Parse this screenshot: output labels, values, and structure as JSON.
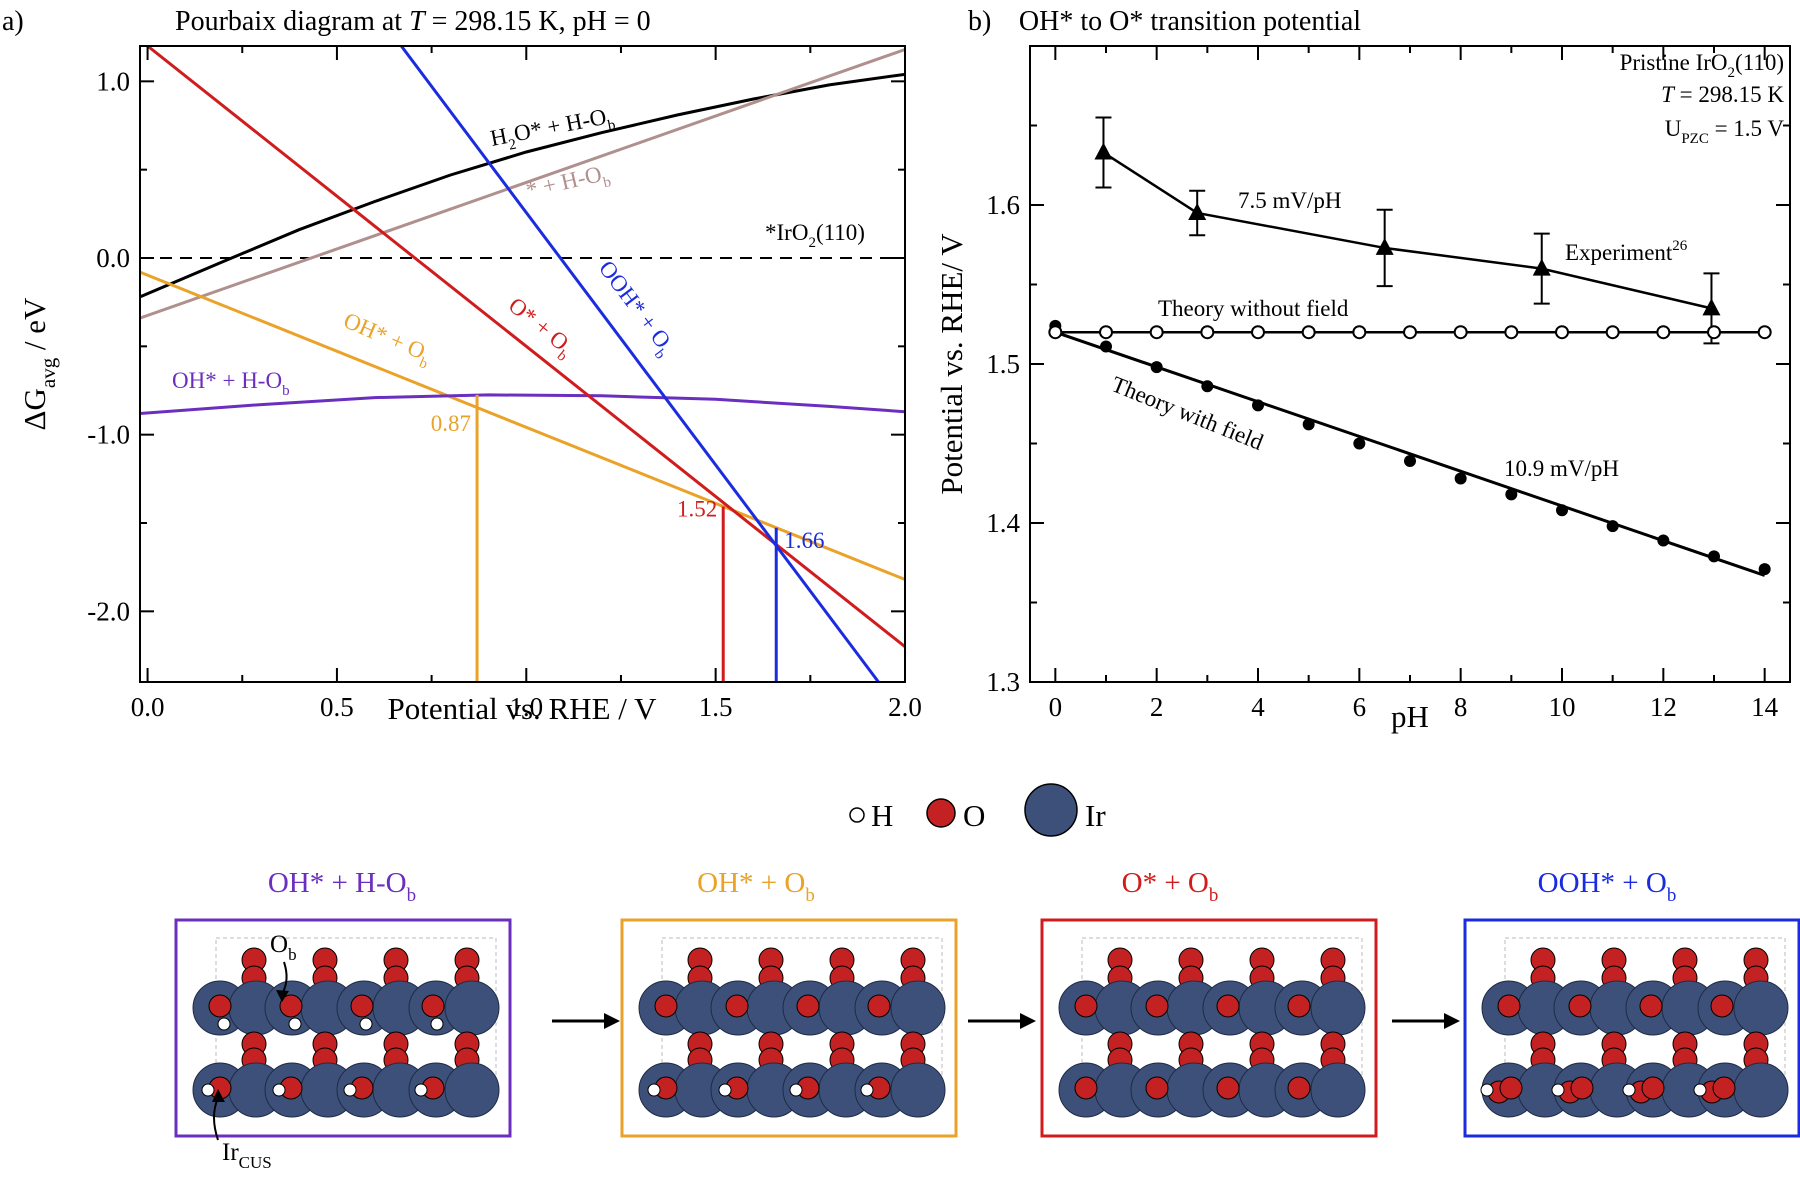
{
  "chart_data": [
    {
      "panel_label": "a)",
      "type": "line",
      "title_parts": [
        "Pourbaix diagram at ",
        "T",
        " = 298.15 K,  pH = 0"
      ],
      "xlabel": "Potential vs. RHE / V",
      "ylabel_parts": [
        "ΔG",
        "avg",
        " / eV"
      ],
      "xlim": [
        -0.02,
        2.0
      ],
      "ylim": [
        -2.4,
        1.2
      ],
      "xticks": [
        0.0,
        0.5,
        1.0,
        1.5,
        2.0
      ],
      "xtick_labels": [
        "0.0",
        "0.5",
        "1.0",
        "1.5",
        "2.0"
      ],
      "yticks": [
        -2.0,
        -1.0,
        0.0,
        1.0
      ],
      "ytick_labels": [
        "-2.0",
        "-1.0",
        "0.0",
        "1.0"
      ],
      "reference_line": {
        "y": 0.0,
        "label_parts": [
          "*IrO",
          "2",
          "(110)"
        ]
      },
      "series": [
        {
          "name_parts": [
            "H",
            "2",
            "O* + H-O",
            "b"
          ],
          "color": "#000000",
          "x": [
            -0.02,
            0.2,
            0.4,
            0.6,
            0.8,
            1.0,
            1.2,
            1.4,
            1.6,
            1.8,
            2.0
          ],
          "y": [
            -0.22,
            -0.02,
            0.16,
            0.32,
            0.47,
            0.6,
            0.71,
            0.81,
            0.9,
            0.98,
            1.04
          ]
        },
        {
          "name_parts": [
            "* + H-O",
            "b"
          ],
          "color": "#b0908e",
          "x": [
            -0.02,
            2.0
          ],
          "y": [
            -0.34,
            1.18
          ]
        },
        {
          "name_parts": [
            "OH* + O",
            "b"
          ],
          "color": "#eaa228",
          "x": [
            -0.02,
            2.0
          ],
          "y": [
            -0.08,
            -1.82
          ]
        },
        {
          "name_parts": [
            "OH* + H-O",
            "b"
          ],
          "color": "#6a2fbf",
          "x": [
            -0.02,
            0.3,
            0.6,
            0.9,
            1.2,
            1.5,
            1.8,
            2.0
          ],
          "y": [
            -0.88,
            -0.83,
            -0.79,
            -0.775,
            -0.78,
            -0.8,
            -0.84,
            -0.87
          ]
        },
        {
          "name_parts": [
            "O* + O",
            "b"
          ],
          "color": "#d01c1c",
          "x": [
            0.0,
            2.0
          ],
          "y": [
            1.2,
            -2.2
          ]
        },
        {
          "name_parts": [
            "OOH* + O",
            "b"
          ],
          "color": "#1a2be0",
          "x": [
            0.67,
            1.93
          ],
          "y": [
            1.2,
            -2.4
          ]
        }
      ],
      "crossings": [
        {
          "x": 0.87,
          "label": "0.87",
          "color": "#eaa228"
        },
        {
          "x": 1.52,
          "label": "1.52",
          "color": "#d01c1c"
        },
        {
          "x": 1.66,
          "label": "1.66",
          "color": "#1a2be0"
        }
      ]
    },
    {
      "panel_label": "b)",
      "type": "scatter",
      "title": "OH* to O* transition potential",
      "xlabel": "pH",
      "ylabel": "Potential  vs. RHE/ V",
      "xlim": [
        -0.5,
        14.5
      ],
      "ylim": [
        1.3,
        1.7
      ],
      "xticks": [
        0,
        2,
        4,
        6,
        8,
        10,
        12,
        14
      ],
      "xtick_labels": [
        "0",
        "2",
        "4",
        "6",
        "8",
        "10",
        "12",
        "14"
      ],
      "yticks": [
        1.3,
        1.4,
        1.5,
        1.6
      ],
      "ytick_labels": [
        "1.3",
        "1.4",
        "1.5",
        "1.6"
      ],
      "legend_lines": [
        [
          "Pristine IrO",
          "2",
          "(110)"
        ],
        [
          "T",
          " = 298.15 K",
          ""
        ],
        [
          "U",
          "PZC",
          " = 1.5 V"
        ]
      ],
      "series": [
        {
          "name_parts": [
            "Experiment",
            "26"
          ],
          "marker": "triangle",
          "color": "#000000",
          "x": [
            0.95,
            2.8,
            6.5,
            9.6,
            12.95
          ],
          "y": [
            1.633,
            1.595,
            1.573,
            1.56,
            1.535
          ],
          "err": [
            0.022,
            0.014,
            0.024,
            0.022,
            0.022
          ],
          "slope_label": "7.5 mV/pH"
        },
        {
          "name_parts": [
            "Theory without field",
            ""
          ],
          "marker": "open-circle",
          "color": "#000000",
          "x": [
            0,
            1,
            2,
            3,
            4,
            5,
            6,
            7,
            8,
            9,
            10,
            11,
            12,
            13,
            14
          ],
          "y": [
            1.52,
            1.52,
            1.52,
            1.52,
            1.52,
            1.52,
            1.52,
            1.52,
            1.52,
            1.52,
            1.52,
            1.52,
            1.52,
            1.52,
            1.52
          ]
        },
        {
          "name_parts": [
            "Theory with field",
            ""
          ],
          "marker": "filled-circle",
          "color": "#000000",
          "x": [
            0,
            1,
            2,
            3,
            4,
            5,
            6,
            7,
            8,
            9,
            10,
            11,
            12,
            13,
            14
          ],
          "y": [
            1.524,
            1.511,
            1.498,
            1.486,
            1.474,
            1.462,
            1.45,
            1.439,
            1.428,
            1.418,
            1.408,
            1.398,
            1.389,
            1.379,
            1.371
          ],
          "fit_line": {
            "x": [
              0,
              14
            ],
            "y": [
              1.52,
              1.367
            ]
          },
          "slope_label": "10.9 mV/pH"
        }
      ]
    }
  ],
  "atom_legend": {
    "H": {
      "label": "H",
      "color": "#ffffff"
    },
    "O": {
      "label": "O",
      "color": "#c42222"
    },
    "Ir": {
      "label": "Ir",
      "color": "#3d5079"
    }
  },
  "structures": [
    {
      "label_parts": [
        "OH* + H-O",
        "b"
      ],
      "color": "#6a2fbf"
    },
    {
      "label_parts": [
        "OH* + O",
        "b"
      ],
      "color": "#eaa228"
    },
    {
      "label_parts": [
        "O* + O",
        "b"
      ],
      "color": "#d01c1c"
    },
    {
      "label_parts": [
        "OOH* + O",
        "b"
      ],
      "color": "#1a2be0"
    }
  ],
  "site_labels": {
    "bridge_parts": [
      "O",
      "b"
    ],
    "cus_parts": [
      "Ir",
      "CUS"
    ]
  }
}
